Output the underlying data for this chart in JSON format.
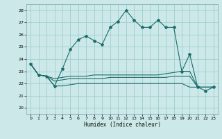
{
  "xlabel": "Humidex (Indice chaleur)",
  "bg_color": "#cce8e8",
  "grid_color": "#9ecece",
  "line_color": "#1a6b6b",
  "x_ticks": [
    0,
    1,
    2,
    3,
    4,
    5,
    6,
    7,
    8,
    9,
    10,
    11,
    12,
    13,
    14,
    15,
    16,
    17,
    18,
    19,
    20,
    21,
    22,
    23
  ],
  "y_ticks": [
    20,
    21,
    22,
    23,
    24,
    25,
    26,
    27,
    28
  ],
  "ylim": [
    19.5,
    28.5
  ],
  "xlim": [
    -0.5,
    23.5
  ],
  "series": {
    "main": [
      23.6,
      22.7,
      22.6,
      21.8,
      23.2,
      24.8,
      25.6,
      25.9,
      25.5,
      25.2,
      26.6,
      27.1,
      28.0,
      27.2,
      26.6,
      26.6,
      27.2,
      26.6,
      26.6,
      23.0,
      24.4,
      21.7,
      21.4,
      21.7
    ],
    "line2": [
      23.6,
      22.7,
      22.6,
      22.4,
      22.5,
      22.6,
      22.6,
      22.6,
      22.7,
      22.7,
      22.7,
      22.7,
      22.7,
      22.7,
      22.7,
      22.7,
      22.7,
      22.8,
      22.9,
      23.0,
      23.0,
      21.7,
      21.7,
      21.7
    ],
    "line3": [
      23.6,
      22.7,
      22.6,
      22.2,
      22.3,
      22.4,
      22.4,
      22.4,
      22.4,
      22.4,
      22.5,
      22.5,
      22.5,
      22.5,
      22.5,
      22.5,
      22.5,
      22.5,
      22.6,
      22.6,
      22.6,
      21.7,
      21.7,
      21.7
    ],
    "line4": [
      23.6,
      22.7,
      22.6,
      21.8,
      21.8,
      21.9,
      22.0,
      22.0,
      22.0,
      22.0,
      22.0,
      22.0,
      22.0,
      22.0,
      22.0,
      22.0,
      22.0,
      22.0,
      22.0,
      22.0,
      21.7,
      21.7,
      21.7,
      21.7
    ]
  }
}
